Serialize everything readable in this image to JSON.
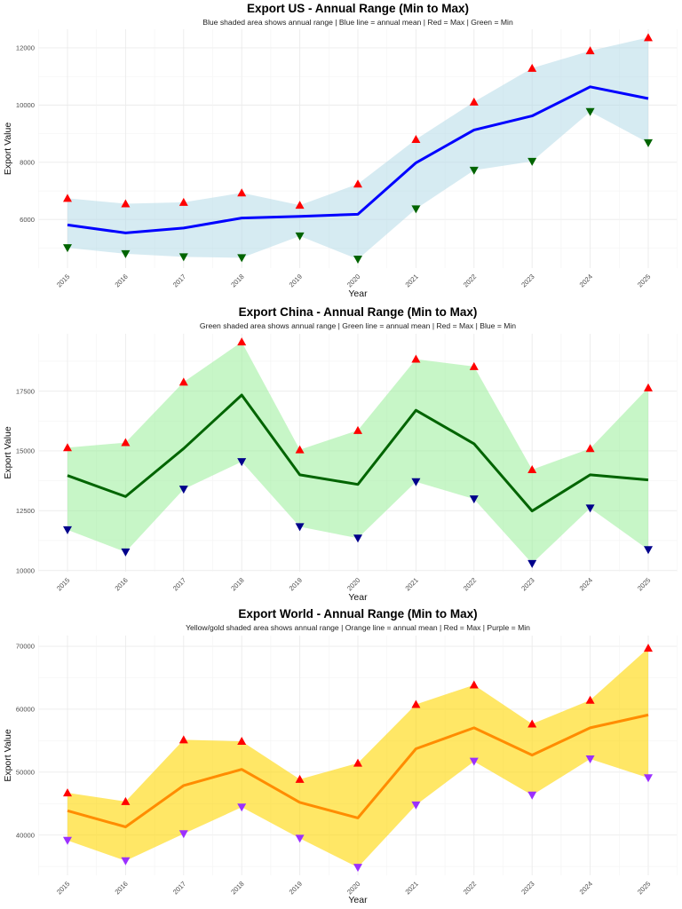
{
  "chart_data": [
    {
      "type": "area",
      "title": "Export US - Annual Range (Min to Max)",
      "subtitle": "Blue shaded area shows annual range | Blue line = annual mean | Red = Max | Green = Min",
      "xlabel": "Year",
      "ylabel": "Export Value",
      "x": [
        2015,
        2016,
        2017,
        2018,
        2019,
        2020,
        2021,
        2022,
        2023,
        2024,
        2025
      ],
      "xticks": [
        "2015",
        "2016",
        "2017",
        "2018",
        "2019",
        "2020",
        "2021",
        "2022",
        "2023",
        "2024",
        "2025"
      ],
      "yticks": [
        "6000",
        "8000",
        "10000",
        "12000"
      ],
      "ytick_values": [
        6000,
        8000,
        10000,
        12000
      ],
      "ylim": [
        4300,
        12650
      ],
      "grid": true,
      "series": [
        {
          "name": "Max",
          "values": [
            6740,
            6550,
            6600,
            6930,
            6500,
            7240,
            8800,
            10110,
            11290,
            11900,
            12360
          ]
        },
        {
          "name": "Mean",
          "values": [
            5810,
            5530,
            5700,
            6050,
            6110,
            6180,
            7980,
            9130,
            9620,
            10640,
            10230
          ]
        },
        {
          "name": "Min",
          "values": [
            5010,
            4800,
            4690,
            4660,
            5420,
            4610,
            6370,
            7720,
            8030,
            9770,
            8680
          ]
        }
      ],
      "colors": {
        "fill": "#add8e6",
        "line": "#0000ff",
        "max": "#ff0000",
        "min": "#006400"
      }
    },
    {
      "type": "area",
      "title": "Export China - Annual Range (Min to Max)",
      "subtitle": "Green shaded area shows annual range | Green line = annual mean | Red = Max | Blue = Min",
      "xlabel": "Year",
      "ylabel": "Export Value",
      "x": [
        2015,
        2016,
        2017,
        2018,
        2019,
        2020,
        2021,
        2022,
        2023,
        2024,
        2025
      ],
      "xticks": [
        "2015",
        "2016",
        "2017",
        "2018",
        "2019",
        "2020",
        "2021",
        "2022",
        "2023",
        "2024",
        "2025"
      ],
      "yticks": [
        "10000",
        "12500",
        "15000",
        "17500"
      ],
      "ytick_values": [
        10000,
        12500,
        15000,
        17500
      ],
      "ylim": [
        9950,
        19900
      ],
      "grid": true,
      "series": [
        {
          "name": "Max",
          "values": [
            15140,
            15350,
            17880,
            19560,
            15050,
            15860,
            18840,
            18530,
            14220,
            15100,
            17640
          ]
        },
        {
          "name": "Mean",
          "values": [
            13970,
            13090,
            15100,
            17340,
            14000,
            13600,
            16700,
            15300,
            12490,
            14000,
            13790
          ]
        },
        {
          "name": "Min",
          "values": [
            11700,
            10770,
            13400,
            14550,
            11830,
            11350,
            13710,
            12990,
            10290,
            12610,
            10870
          ]
        }
      ],
      "colors": {
        "fill": "#90ee90",
        "line": "#006400",
        "max": "#ff0000",
        "min": "#00008b"
      }
    },
    {
      "type": "area",
      "title": "Export World - Annual Range (Min to Max)",
      "subtitle": "Yellow/gold shaded area shows annual range | Orange line = annual mean | Red = Max | Purple = Min",
      "xlabel": "Year",
      "ylabel": "Export Value",
      "x": [
        2015,
        2016,
        2017,
        2018,
        2019,
        2020,
        2021,
        2022,
        2023,
        2024,
        2025
      ],
      "xticks": [
        "2015",
        "2016",
        "2017",
        "2018",
        "2019",
        "2020",
        "2021",
        "2022",
        "2023",
        "2024",
        "2025"
      ],
      "yticks": [
        "40000",
        "50000",
        "60000",
        "70000"
      ],
      "ytick_values": [
        40000,
        50000,
        60000,
        70000
      ],
      "ylim": [
        33600,
        71700
      ],
      "grid": true,
      "series": [
        {
          "name": "Max",
          "values": [
            46710,
            45330,
            55140,
            54900,
            48860,
            51430,
            60760,
            63860,
            57660,
            61430,
            69710
          ]
        },
        {
          "name": "Mean",
          "values": [
            43860,
            41290,
            47860,
            50430,
            45190,
            42710,
            53710,
            57040,
            52710,
            57040,
            59090
          ]
        },
        {
          "name": "Min",
          "values": [
            39140,
            35900,
            40190,
            44430,
            39470,
            34860,
            44760,
            51710,
            46330,
            52090,
            49090
          ]
        }
      ],
      "colors": {
        "fill": "#ffd700",
        "line": "#ff8c00",
        "max": "#ff0000",
        "min": "#9b30ff"
      }
    }
  ]
}
